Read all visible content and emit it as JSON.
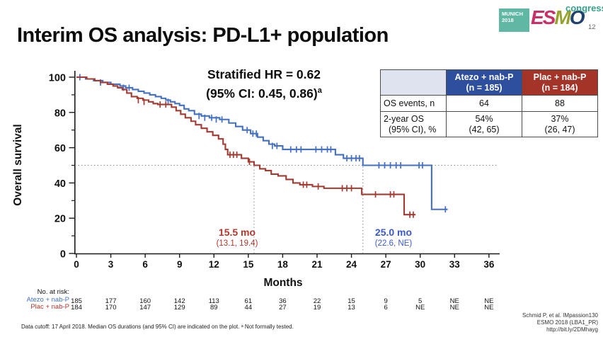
{
  "slide": {
    "title": "Interim OS analysis: PD-L1+ population",
    "slide_number": "12"
  },
  "logo": {
    "munich": "MUNICH",
    "year": "2018",
    "letters": [
      {
        "ch": "E",
        "color": "#c92f68"
      },
      {
        "ch": "S",
        "color": "#c92f68"
      },
      {
        "ch": "M",
        "color": "#96a22d"
      },
      {
        "ch": "O",
        "color": "#20406e"
      }
    ],
    "congress": "congress"
  },
  "annotation": {
    "line1": "Stratified HR = 0.62",
    "line2": "(95% CI: 0.45, 0.86)",
    "line2_sup": "a"
  },
  "summary_table": {
    "columns": [
      {
        "title_line1": "Atezo + nab-P",
        "title_line2": "(n = 185)",
        "color": "#2e4f9e"
      },
      {
        "title_line1": "Plac + nab-P",
        "title_line2": "(n = 184)",
        "color": "#a43328"
      }
    ],
    "rows": [
      {
        "label_line1": "OS events, n",
        "label_line2": "",
        "values": [
          {
            "line1": "64",
            "line2": ""
          },
          {
            "line1": "88",
            "line2": ""
          }
        ]
      },
      {
        "label_line1": "2-year OS",
        "label_line2": "(95% CI), %",
        "values": [
          {
            "line1": "54%",
            "line2": "(42, 65)"
          },
          {
            "line1": "37%",
            "line2": "(26, 47)"
          }
        ]
      }
    ]
  },
  "chart_data": {
    "type": "line",
    "subtype": "kaplan-meier-step",
    "xlabel": "Months",
    "ylabel": "Overall survival",
    "xlim": [
      0,
      36
    ],
    "ylim": [
      0,
      100
    ],
    "x_ticks": [
      0,
      3,
      6,
      9,
      12,
      15,
      18,
      21,
      24,
      27,
      30,
      33,
      36
    ],
    "y_ticks_major": [
      0,
      20,
      40,
      60,
      80,
      100
    ],
    "y_ticks_minor": [
      10,
      30,
      50,
      70,
      90
    ],
    "reference_line_y": 50,
    "series": [
      {
        "name": "Atezo + nab-P",
        "color": "#4470c2",
        "points": [
          [
            0,
            100
          ],
          [
            0.8,
            99
          ],
          [
            1.5,
            98
          ],
          [
            2.3,
            97
          ],
          [
            3.0,
            96
          ],
          [
            3.8,
            95
          ],
          [
            4.3,
            94
          ],
          [
            4.9,
            93
          ],
          [
            5.4,
            92
          ],
          [
            5.9,
            91
          ],
          [
            6.4,
            90
          ],
          [
            6.9,
            89
          ],
          [
            7.4,
            88
          ],
          [
            7.8,
            87
          ],
          [
            8.2,
            86
          ],
          [
            8.6,
            85
          ],
          [
            9.0,
            84
          ],
          [
            9.4,
            82
          ],
          [
            9.8,
            81
          ],
          [
            10.3,
            79
          ],
          [
            10.9,
            78
          ],
          [
            11.6,
            77
          ],
          [
            12.5,
            76
          ],
          [
            13.3,
            74
          ],
          [
            13.9,
            72
          ],
          [
            14.5,
            70
          ],
          [
            15.2,
            68
          ],
          [
            15.8,
            66
          ],
          [
            16.3,
            64
          ],
          [
            16.8,
            62
          ],
          [
            17.3,
            61
          ],
          [
            18.0,
            59
          ],
          [
            22.6,
            56
          ],
          [
            23.3,
            54
          ],
          [
            25.0,
            50
          ],
          [
            31.0,
            25
          ],
          [
            32.4,
            25
          ]
        ],
        "censors": [
          [
            0.3,
            100
          ],
          [
            2.1,
            97
          ],
          [
            4.1,
            94
          ],
          [
            4.6,
            94
          ],
          [
            8.0,
            86
          ],
          [
            10.7,
            78
          ],
          [
            11.2,
            77
          ],
          [
            11.8,
            77
          ],
          [
            12.2,
            76
          ],
          [
            12.7,
            76
          ],
          [
            14.9,
            70
          ],
          [
            15.4,
            68
          ],
          [
            15.7,
            68
          ],
          [
            17.1,
            61
          ],
          [
            17.5,
            61
          ],
          [
            18.7,
            59
          ],
          [
            19.2,
            59
          ],
          [
            19.6,
            59
          ],
          [
            20.9,
            59
          ],
          [
            21.4,
            59
          ],
          [
            21.9,
            59
          ],
          [
            22.2,
            59
          ],
          [
            23.6,
            54
          ],
          [
            24.0,
            54
          ],
          [
            24.4,
            54
          ],
          [
            24.7,
            54
          ],
          [
            26.4,
            50
          ],
          [
            26.9,
            50
          ],
          [
            27.4,
            50
          ],
          [
            27.9,
            50
          ],
          [
            28.3,
            50
          ],
          [
            29.9,
            50
          ],
          [
            30.2,
            50
          ],
          [
            32.2,
            25
          ]
        ]
      },
      {
        "name": "Plac + nab-P",
        "color": "#a23b31",
        "points": [
          [
            0,
            100
          ],
          [
            0.9,
            99
          ],
          [
            1.6,
            98
          ],
          [
            2.1,
            97
          ],
          [
            2.7,
            96
          ],
          [
            3.2,
            95
          ],
          [
            3.6,
            94
          ],
          [
            4.0,
            93
          ],
          [
            4.4,
            91
          ],
          [
            4.8,
            89
          ],
          [
            5.3,
            88
          ],
          [
            5.8,
            87
          ],
          [
            6.3,
            86
          ],
          [
            6.7,
            85
          ],
          [
            7.1,
            84.5
          ],
          [
            8.3,
            83
          ],
          [
            8.7,
            81
          ],
          [
            9.1,
            79
          ],
          [
            9.5,
            77
          ],
          [
            10.0,
            75
          ],
          [
            10.4,
            73
          ],
          [
            10.9,
            71
          ],
          [
            11.4,
            69
          ],
          [
            11.9,
            67
          ],
          [
            12.4,
            65
          ],
          [
            12.8,
            62
          ],
          [
            13.0,
            59
          ],
          [
            13.2,
            56
          ],
          [
            14.4,
            54
          ],
          [
            15.0,
            52
          ],
          [
            15.5,
            50
          ],
          [
            16.0,
            48
          ],
          [
            16.5,
            47
          ],
          [
            17.0,
            45
          ],
          [
            17.6,
            44
          ],
          [
            18.3,
            42
          ],
          [
            18.9,
            40
          ],
          [
            19.5,
            39
          ],
          [
            20.6,
            38
          ],
          [
            21.6,
            37
          ],
          [
            24.9,
            33.5
          ],
          [
            28.6,
            22
          ],
          [
            29.6,
            22
          ]
        ],
        "censors": [
          [
            5.4,
            87
          ],
          [
            5.9,
            86
          ],
          [
            7.3,
            84.5
          ],
          [
            7.8,
            84.5
          ],
          [
            13.4,
            56
          ],
          [
            13.7,
            56
          ],
          [
            14.0,
            56
          ],
          [
            15.1,
            52
          ],
          [
            19.8,
            39
          ],
          [
            20.1,
            39
          ],
          [
            21.1,
            38
          ],
          [
            23.2,
            37
          ],
          [
            23.6,
            37
          ],
          [
            24.0,
            37
          ],
          [
            26.1,
            33.5
          ],
          [
            27.4,
            33.5
          ],
          [
            27.7,
            33.5
          ],
          [
            29.1,
            22
          ],
          [
            29.4,
            22
          ]
        ]
      }
    ],
    "medians": [
      {
        "x": 15.5,
        "label": "15.5 mo",
        "ci": "(13.1, 19.4)",
        "color": "#b5352b"
      },
      {
        "x": 25.0,
        "label": "25.0 mo",
        "ci": "(22.6, NE)",
        "color": "#3a5bc7"
      }
    ]
  },
  "risk_table": {
    "heading": "No. at risk:",
    "months": [
      0,
      3,
      6,
      9,
      12,
      15,
      18,
      21,
      24,
      27,
      30,
      33,
      36
    ],
    "rows": [
      {
        "label": "Atezo + nab-P",
        "color": "#4472c4",
        "values": [
          "185",
          "177",
          "160",
          "142",
          "113",
          "61",
          "36",
          "22",
          "15",
          "9",
          "5",
          "NE",
          "NE"
        ]
      },
      {
        "label": "Plac + nab-P",
        "color": "#b5352b",
        "values": [
          "184",
          "170",
          "147",
          "129",
          "89",
          "44",
          "27",
          "19",
          "13",
          "6",
          "NE",
          "NE",
          "NE"
        ]
      }
    ]
  },
  "footnotes": {
    "left": "Data cutoff: 17 April 2018. Median OS durations (and 95% CI) are indicated on the plot. ᵃ Not formally tested.",
    "right_lines": [
      "Schmid P, et al. IMpassion130",
      "ESMO 2018 (LBA1_PR)",
      "http://bit.ly/2DMhayg"
    ]
  }
}
